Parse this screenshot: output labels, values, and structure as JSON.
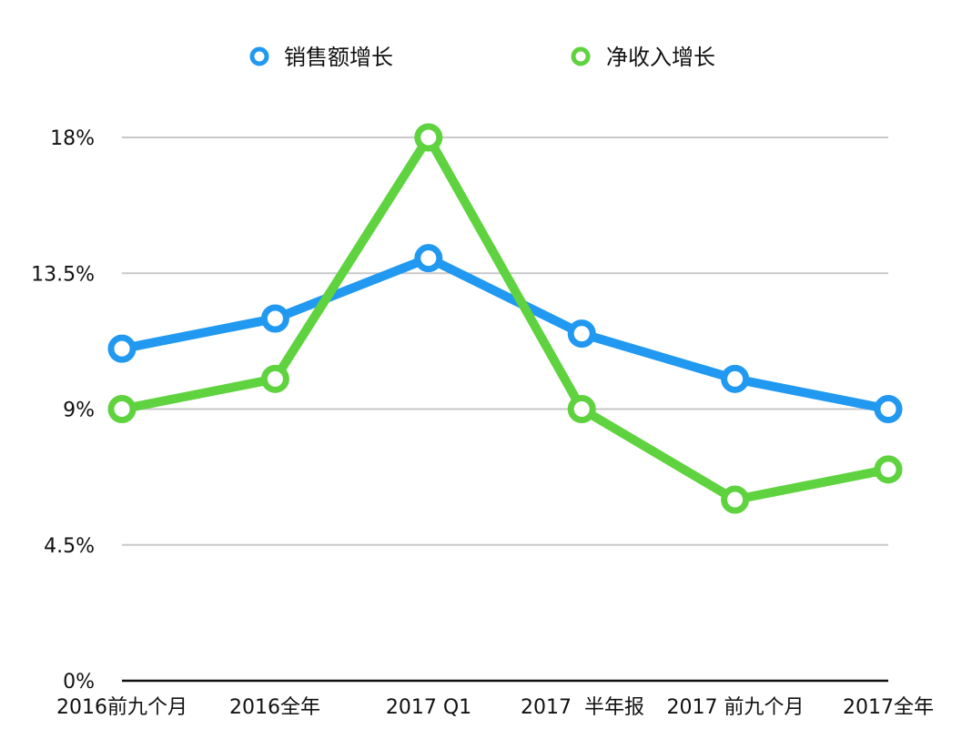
{
  "chart_data": {
    "type": "line",
    "categories": [
      "2016前九个月",
      "2016全年",
      "2017 Q1",
      "2017  半年报",
      "2017 前九个月",
      "2017全年"
    ],
    "series": [
      {
        "name": "销售额增长",
        "color": "#2199F0",
        "values": [
          11.0,
          12.0,
          14.0,
          11.5,
          10.0,
          9.0
        ]
      },
      {
        "name": "净收入增长",
        "color": "#5FD33F",
        "values": [
          9.0,
          10.0,
          18.0,
          9.0,
          6.0,
          7.0
        ]
      }
    ],
    "ylim": [
      0,
      18
    ],
    "yticks": [
      "0%",
      "4.5%",
      "9%",
      "13.5%",
      "18%"
    ],
    "ytick_values": [
      0,
      4.5,
      9,
      13.5,
      18
    ],
    "grid": true,
    "legend_position": "top",
    "grid_color": "#C8C8C8",
    "axis_color": "#111111"
  }
}
